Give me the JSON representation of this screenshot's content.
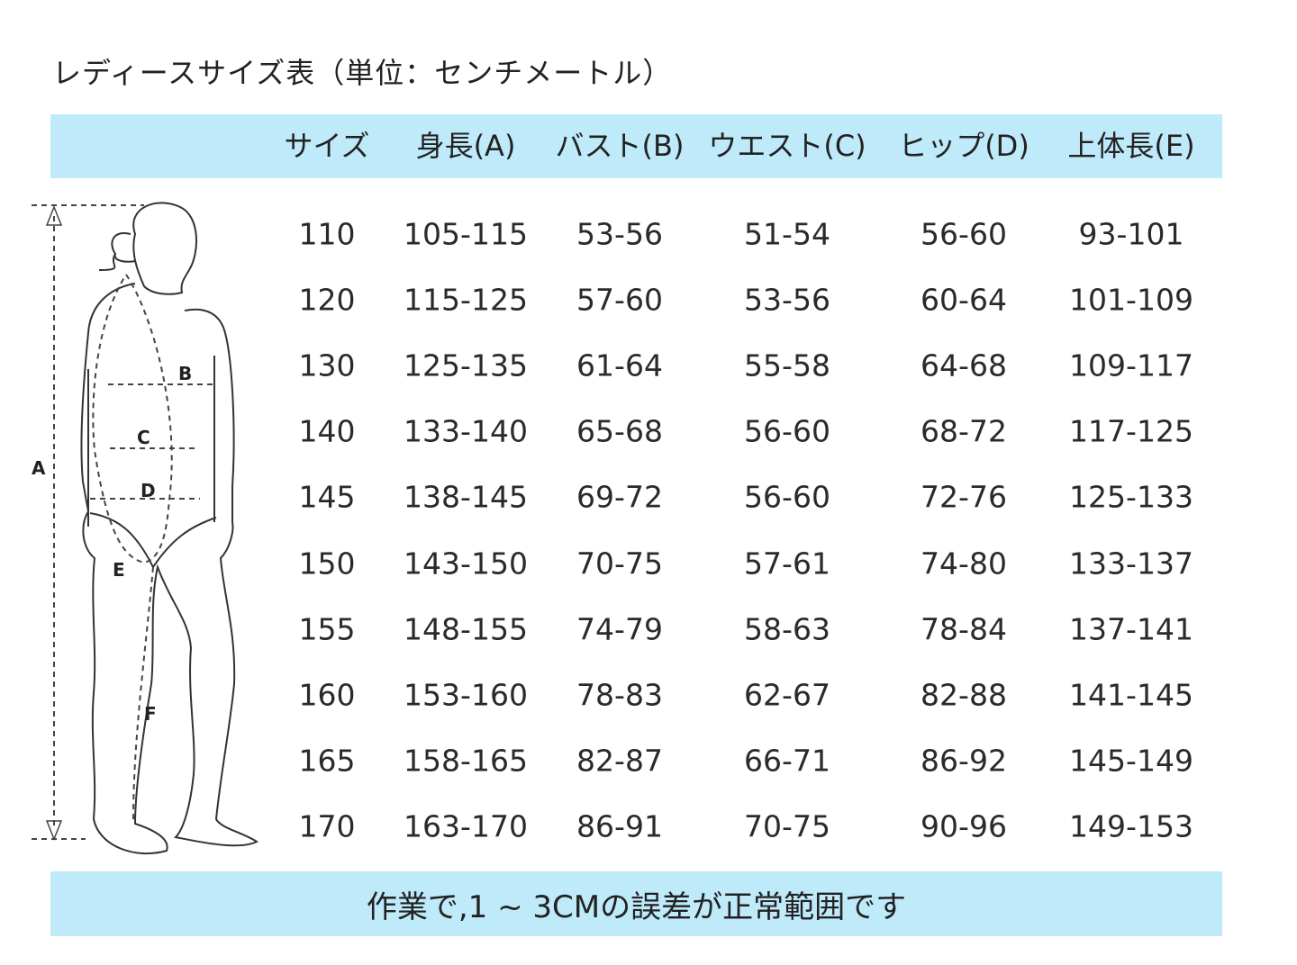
{
  "title": "レディースサイズ表（単位：センチメートル）",
  "accent_color": "#bfeafa",
  "columns": [
    "サイズ",
    "身長(A)",
    "バスト(B)",
    "ウエスト(C)",
    "ヒップ(D)",
    "上体長(E)"
  ],
  "rows": [
    [
      "110",
      "105-115",
      "53-56",
      "51-54",
      "56-60",
      "93-101"
    ],
    [
      "120",
      "115-125",
      "57-60",
      "53-56",
      "60-64",
      "101-109"
    ],
    [
      "130",
      "125-135",
      "61-64",
      "55-58",
      "64-68",
      "109-117"
    ],
    [
      "140",
      "133-140",
      "65-68",
      "56-60",
      "68-72",
      "117-125"
    ],
    [
      "145",
      "138-145",
      "69-72",
      "56-60",
      "72-76",
      "125-133"
    ],
    [
      "150",
      "143-150",
      "70-75",
      "57-61",
      "74-80",
      "133-137"
    ],
    [
      "155",
      "148-155",
      "74-79",
      "58-63",
      "78-84",
      "137-141"
    ],
    [
      "160",
      "153-160",
      "78-83",
      "62-67",
      "82-88",
      "141-145"
    ],
    [
      "165",
      "158-165",
      "82-87",
      "66-71",
      "86-92",
      "145-149"
    ],
    [
      "170",
      "163-170",
      "86-91",
      "70-75",
      "90-96",
      "149-153"
    ]
  ],
  "figure": {
    "labels": {
      "a": "A",
      "b": "B",
      "c": "C",
      "d": "D",
      "e": "E",
      "f": "F"
    }
  },
  "footer": "作業で,1 ~ 3CMの誤差が正常範囲です"
}
